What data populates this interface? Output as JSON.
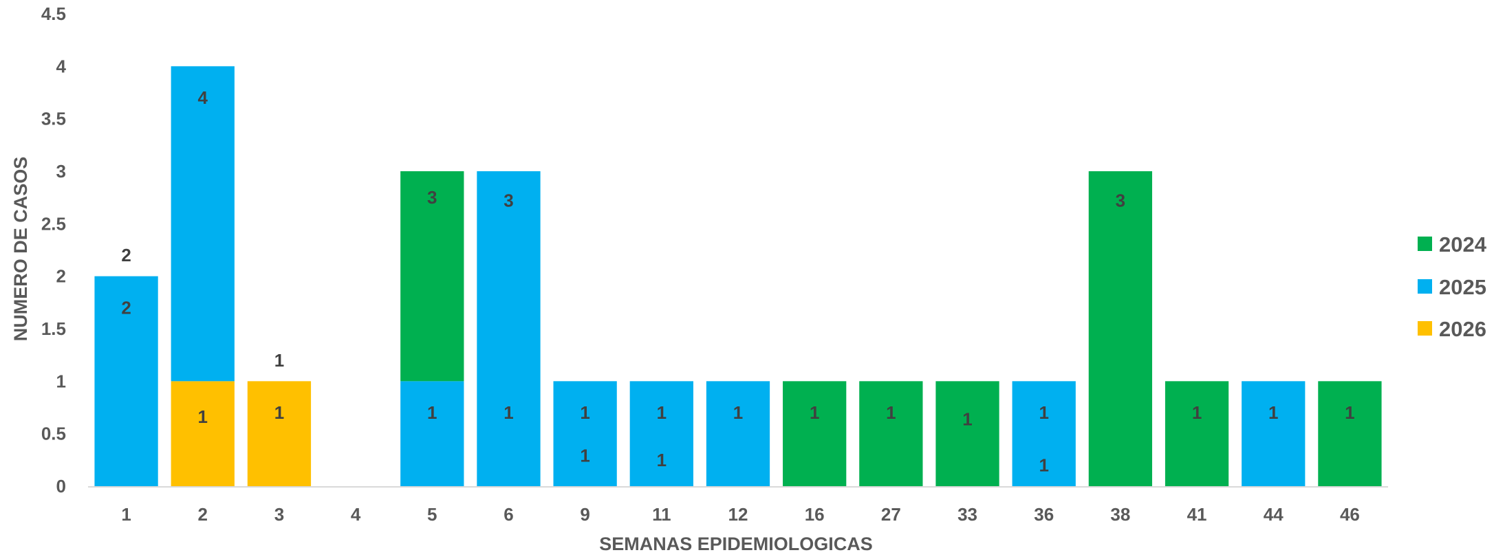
{
  "chart_data": {
    "type": "bar",
    "stacked": true,
    "xlabel": "SEMANAS EPIDEMIOLOGICAS",
    "ylabel": "NUMERO DE CASOS",
    "ylim": [
      0,
      4.5
    ],
    "yticks": [
      "0",
      "0.5",
      "1",
      "1.5",
      "2",
      "2.5",
      "3",
      "3.5",
      "4",
      "4.5"
    ],
    "grid": false,
    "legend_position": "right",
    "categories": [
      "1",
      "2",
      "3",
      "4",
      "5",
      "6",
      "9",
      "11",
      "12",
      "16",
      "27",
      "33",
      "36",
      "38",
      "41",
      "44",
      "46"
    ],
    "series": [
      {
        "name": "2026",
        "color": "#FFC000",
        "values": [
          0,
          1,
          1,
          0,
          0,
          0,
          0,
          0,
          0,
          0,
          0,
          0,
          0,
          0,
          0,
          0,
          0
        ]
      },
      {
        "name": "2025",
        "color": "#00B0F0",
        "values": [
          2,
          3,
          0,
          0,
          1,
          3,
          1,
          1,
          1,
          0,
          0,
          0,
          1,
          0,
          0,
          1,
          0
        ]
      },
      {
        "name": "2024",
        "color": "#00B050",
        "values": [
          0,
          0,
          0,
          0,
          2,
          0,
          0,
          0,
          0,
          1,
          1,
          1,
          0,
          3,
          1,
          0,
          1
        ]
      }
    ],
    "data_labels": [
      {
        "category": "1",
        "value": "2",
        "y": 2.2
      },
      {
        "category": "1",
        "value": "2",
        "y": 1.7
      },
      {
        "category": "2",
        "value": "4",
        "y": 3.7
      },
      {
        "category": "2",
        "value": "1",
        "y": 0.66
      },
      {
        "category": "3",
        "value": "1",
        "y": 1.2
      },
      {
        "category": "3",
        "value": "1",
        "y": 0.7
      },
      {
        "category": "5",
        "value": "3",
        "y": 2.75
      },
      {
        "category": "5",
        "value": "1",
        "y": 0.7
      },
      {
        "category": "6",
        "value": "3",
        "y": 2.72
      },
      {
        "category": "6",
        "value": "1",
        "y": 0.7
      },
      {
        "category": "9",
        "value": "1",
        "y": 0.7
      },
      {
        "category": "9",
        "value": "1",
        "y": 0.29
      },
      {
        "category": "11",
        "value": "1",
        "y": 0.7
      },
      {
        "category": "11",
        "value": "1",
        "y": 0.25
      },
      {
        "category": "12",
        "value": "1",
        "y": 0.7
      },
      {
        "category": "16",
        "value": "1",
        "y": 0.7
      },
      {
        "category": "27",
        "value": "1",
        "y": 0.7
      },
      {
        "category": "33",
        "value": "1",
        "y": 0.64
      },
      {
        "category": "36",
        "value": "1",
        "y": 0.7
      },
      {
        "category": "36",
        "value": "1",
        "y": 0.2
      },
      {
        "category": "38",
        "value": "3",
        "y": 2.72
      },
      {
        "category": "41",
        "value": "1",
        "y": 0.7
      },
      {
        "category": "44",
        "value": "1",
        "y": 0.7
      },
      {
        "category": "46",
        "value": "1",
        "y": 0.7
      }
    ],
    "legend_order": [
      "2024",
      "2025",
      "2026"
    ]
  }
}
